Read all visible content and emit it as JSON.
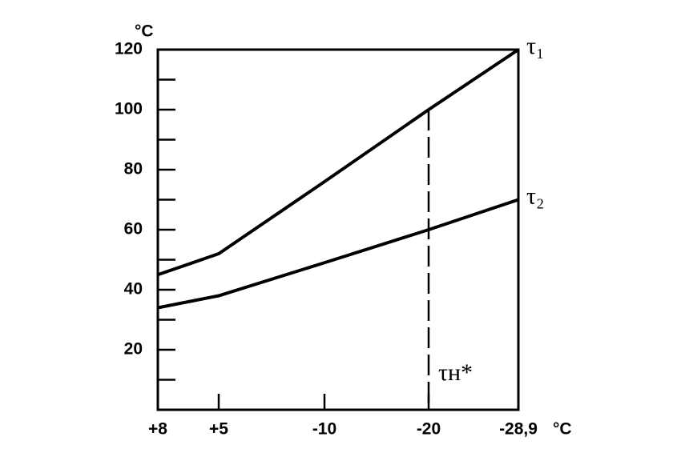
{
  "chart_data": {
    "type": "line",
    "y_unit": "°C",
    "x_unit": "°C",
    "categories": [
      "+8",
      "+5",
      "-10",
      "-20",
      "-28,9"
    ],
    "series": [
      {
        "name": "τ₁",
        "color": "#000000",
        "values": [
          45,
          52,
          76,
          100,
          120
        ]
      },
      {
        "name": "τ₂",
        "color": "#000000",
        "values": [
          34,
          38,
          49,
          60,
          70
        ]
      }
    ],
    "ylim": [
      0,
      120
    ],
    "yticks": [
      20,
      40,
      60,
      80,
      100,
      120
    ],
    "yminorticks": [
      10,
      30,
      50,
      70,
      90,
      110
    ],
    "annotation": {
      "text": "τн*",
      "category": 3
    }
  }
}
